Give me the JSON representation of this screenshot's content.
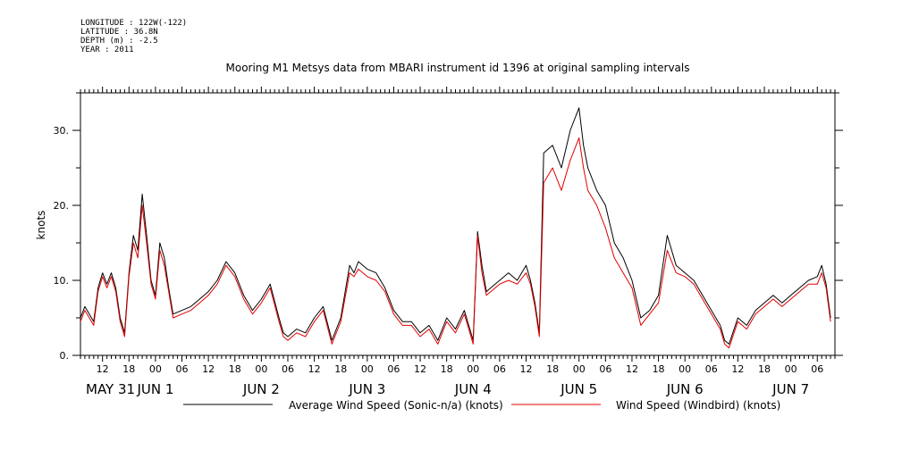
{
  "header": {
    "meta_lines": [
      "LONGITUDE : 122W(-122)",
      "LATITUDE : 36.8N",
      "DEPTH (m) : -2.5",
      "YEAR : 2011"
    ],
    "title": "Mooring M1 Metsys data from MBARI instrument id 1396 at original sampling intervals"
  },
  "chart_data": {
    "type": "line",
    "title": "Mooring M1 Metsys data from MBARI instrument id 1396 at original sampling intervals",
    "ylabel": "knots",
    "xlabel": "",
    "xlim": [
      "2011-05-31T07:00",
      "2011-06-07T10:00"
    ],
    "ylim": [
      0,
      35
    ],
    "y_ticks": [
      0,
      10,
      20,
      30
    ],
    "y_tick_labels": [
      "0.",
      "10.",
      "20.",
      "30."
    ],
    "hour_ticks": [
      {
        "t": "2011-05-31T12:00",
        "label": "12"
      },
      {
        "t": "2011-05-31T18:00",
        "label": "18"
      },
      {
        "t": "2011-06-01T00:00",
        "label": "00"
      },
      {
        "t": "2011-06-01T06:00",
        "label": "06"
      },
      {
        "t": "2011-06-01T12:00",
        "label": "12"
      },
      {
        "t": "2011-06-01T18:00",
        "label": "18"
      },
      {
        "t": "2011-06-02T00:00",
        "label": "00"
      },
      {
        "t": "2011-06-02T06:00",
        "label": "06"
      },
      {
        "t": "2011-06-02T12:00",
        "label": "12"
      },
      {
        "t": "2011-06-02T18:00",
        "label": "18"
      },
      {
        "t": "2011-06-03T00:00",
        "label": "00"
      },
      {
        "t": "2011-06-03T06:00",
        "label": "06"
      },
      {
        "t": "2011-06-03T12:00",
        "label": "12"
      },
      {
        "t": "2011-06-03T18:00",
        "label": "18"
      },
      {
        "t": "2011-06-04T00:00",
        "label": "00"
      },
      {
        "t": "2011-06-04T06:00",
        "label": "06"
      },
      {
        "t": "2011-06-04T12:00",
        "label": "12"
      },
      {
        "t": "2011-06-04T18:00",
        "label": "18"
      },
      {
        "t": "2011-06-05T00:00",
        "label": "00"
      },
      {
        "t": "2011-06-05T06:00",
        "label": "06"
      },
      {
        "t": "2011-06-05T12:00",
        "label": "12"
      },
      {
        "t": "2011-06-05T18:00",
        "label": "18"
      },
      {
        "t": "2011-06-06T00:00",
        "label": "00"
      },
      {
        "t": "2011-06-06T06:00",
        "label": "06"
      },
      {
        "t": "2011-06-06T12:00",
        "label": "12"
      },
      {
        "t": "2011-06-06T18:00",
        "label": "18"
      },
      {
        "t": "2011-06-07T00:00",
        "label": "00"
      },
      {
        "t": "2011-06-07T06:00",
        "label": "06"
      }
    ],
    "day_labels": [
      {
        "t": "2011-05-31T00:00",
        "label": "MAY 31"
      },
      {
        "t": "2011-06-01T00:00",
        "label": "JUN  1"
      },
      {
        "t": "2011-06-02T00:00",
        "label": "JUN  2"
      },
      {
        "t": "2011-06-03T00:00",
        "label": "JUN  3"
      },
      {
        "t": "2011-06-04T00:00",
        "label": "JUN  4"
      },
      {
        "t": "2011-06-05T00:00",
        "label": "JUN  5"
      },
      {
        "t": "2011-06-06T00:00",
        "label": "JUN  6"
      },
      {
        "t": "2011-06-07T00:00",
        "label": "JUN  7"
      }
    ],
    "grid": false,
    "legend_position": "bottom",
    "series": [
      {
        "name": "Average Wind Speed (Sonic-n/a) (knots)",
        "color": "#000000",
        "x": [
          "2011-05-31T07:00",
          "2011-05-31T08:00",
          "2011-05-31T09:00",
          "2011-05-31T10:00",
          "2011-05-31T11:00",
          "2011-05-31T12:00",
          "2011-05-31T13:00",
          "2011-05-31T14:00",
          "2011-05-31T15:00",
          "2011-05-31T16:00",
          "2011-05-31T17:00",
          "2011-05-31T18:00",
          "2011-05-31T19:00",
          "2011-05-31T20:00",
          "2011-05-31T21:00",
          "2011-05-31T22:00",
          "2011-05-31T23:00",
          "2011-06-01T00:00",
          "2011-06-01T01:00",
          "2011-06-01T02:00",
          "2011-06-01T03:00",
          "2011-06-01T04:00",
          "2011-06-01T06:00",
          "2011-06-01T08:00",
          "2011-06-01T10:00",
          "2011-06-01T12:00",
          "2011-06-01T14:00",
          "2011-06-01T16:00",
          "2011-06-01T18:00",
          "2011-06-01T20:00",
          "2011-06-01T22:00",
          "2011-06-02T00:00",
          "2011-06-02T02:00",
          "2011-06-02T04:00",
          "2011-06-02T05:00",
          "2011-06-02T06:00",
          "2011-06-02T08:00",
          "2011-06-02T10:00",
          "2011-06-02T12:00",
          "2011-06-02T14:00",
          "2011-06-02T16:00",
          "2011-06-02T18:00",
          "2011-06-02T20:00",
          "2011-06-02T21:00",
          "2011-06-02T22:00",
          "2011-06-03T00:00",
          "2011-06-03T02:00",
          "2011-06-03T04:00",
          "2011-06-03T06:00",
          "2011-06-03T08:00",
          "2011-06-03T10:00",
          "2011-06-03T12:00",
          "2011-06-03T14:00",
          "2011-06-03T16:00",
          "2011-06-03T18:00",
          "2011-06-03T20:00",
          "2011-06-03T22:00",
          "2011-06-04T00:00",
          "2011-06-04T01:00",
          "2011-06-04T02:00",
          "2011-06-04T03:00",
          "2011-06-04T04:00",
          "2011-06-04T06:00",
          "2011-06-04T08:00",
          "2011-06-04T10:00",
          "2011-06-04T12:00",
          "2011-06-04T13:00",
          "2011-06-04T14:00",
          "2011-06-04T15:00",
          "2011-06-04T16:00",
          "2011-06-04T18:00",
          "2011-06-04T20:00",
          "2011-06-04T22:00",
          "2011-06-05T00:00",
          "2011-06-05T01:00",
          "2011-06-05T02:00",
          "2011-06-05T04:00",
          "2011-06-05T06:00",
          "2011-06-05T08:00",
          "2011-06-05T10:00",
          "2011-06-05T12:00",
          "2011-06-05T14:00",
          "2011-06-05T16:00",
          "2011-06-05T18:00",
          "2011-06-05T20:00",
          "2011-06-05T22:00",
          "2011-06-06T00:00",
          "2011-06-06T02:00",
          "2011-06-06T04:00",
          "2011-06-06T06:00",
          "2011-06-06T08:00",
          "2011-06-06T09:00",
          "2011-06-06T10:00",
          "2011-06-06T12:00",
          "2011-06-06T14:00",
          "2011-06-06T16:00",
          "2011-06-06T18:00",
          "2011-06-06T20:00",
          "2011-06-06T22:00",
          "2011-06-07T00:00",
          "2011-06-07T02:00",
          "2011-06-07T04:00",
          "2011-06-07T06:00",
          "2011-06-07T07:00",
          "2011-06-07T08:00",
          "2011-06-07T09:00"
        ],
        "y": [
          5,
          6.5,
          5.5,
          4.5,
          9,
          11,
          9.5,
          11,
          9,
          5,
          3,
          11,
          16,
          14,
          21.5,
          16,
          10,
          8,
          15,
          13,
          9,
          5.5,
          6,
          6.5,
          7.5,
          8.5,
          10,
          12.5,
          11,
          8,
          6,
          7.5,
          9.5,
          5,
          3,
          2.5,
          3.5,
          3,
          5,
          6.5,
          2,
          5,
          12,
          11,
          12.5,
          11.5,
          11,
          9,
          6,
          4.5,
          4.5,
          3,
          4,
          2,
          5,
          3.5,
          6,
          2,
          16.5,
          12,
          8.5,
          9,
          10,
          11,
          10,
          12,
          10,
          7,
          3,
          27,
          28,
          25,
          30,
          33,
          28,
          25,
          22,
          20,
          15,
          13,
          10,
          5,
          6,
          8,
          16,
          12,
          11,
          10,
          8,
          6,
          4,
          2,
          1.5,
          5,
          4,
          6,
          7,
          8,
          7,
          8,
          9,
          10,
          10.5,
          12,
          9.5,
          5
        ]
      },
      {
        "name": "Wind Speed (Windbird) (knots)",
        "color": "#e00000",
        "x": [
          "2011-05-31T07:00",
          "2011-05-31T08:00",
          "2011-05-31T09:00",
          "2011-05-31T10:00",
          "2011-05-31T11:00",
          "2011-05-31T12:00",
          "2011-05-31T13:00",
          "2011-05-31T14:00",
          "2011-05-31T15:00",
          "2011-05-31T16:00",
          "2011-05-31T17:00",
          "2011-05-31T18:00",
          "2011-05-31T19:00",
          "2011-05-31T20:00",
          "2011-05-31T21:00",
          "2011-05-31T22:00",
          "2011-05-31T23:00",
          "2011-06-01T00:00",
          "2011-06-01T01:00",
          "2011-06-01T02:00",
          "2011-06-01T03:00",
          "2011-06-01T04:00",
          "2011-06-01T06:00",
          "2011-06-01T08:00",
          "2011-06-01T10:00",
          "2011-06-01T12:00",
          "2011-06-01T14:00",
          "2011-06-01T16:00",
          "2011-06-01T18:00",
          "2011-06-01T20:00",
          "2011-06-01T22:00",
          "2011-06-02T00:00",
          "2011-06-02T02:00",
          "2011-06-02T04:00",
          "2011-06-02T05:00",
          "2011-06-02T06:00",
          "2011-06-02T08:00",
          "2011-06-02T10:00",
          "2011-06-02T12:00",
          "2011-06-02T14:00",
          "2011-06-02T16:00",
          "2011-06-02T18:00",
          "2011-06-02T20:00",
          "2011-06-02T21:00",
          "2011-06-02T22:00",
          "2011-06-03T00:00",
          "2011-06-03T02:00",
          "2011-06-03T04:00",
          "2011-06-03T06:00",
          "2011-06-03T08:00",
          "2011-06-03T10:00",
          "2011-06-03T12:00",
          "2011-06-03T14:00",
          "2011-06-03T16:00",
          "2011-06-03T18:00",
          "2011-06-03T20:00",
          "2011-06-03T22:00",
          "2011-06-04T00:00",
          "2011-06-04T01:00",
          "2011-06-04T02:00",
          "2011-06-04T03:00",
          "2011-06-04T04:00",
          "2011-06-04T06:00",
          "2011-06-04T08:00",
          "2011-06-04T10:00",
          "2011-06-04T12:00",
          "2011-06-04T13:00",
          "2011-06-04T14:00",
          "2011-06-04T15:00",
          "2011-06-04T16:00",
          "2011-06-04T18:00",
          "2011-06-04T20:00",
          "2011-06-04T22:00",
          "2011-06-05T00:00",
          "2011-06-05T01:00",
          "2011-06-05T02:00",
          "2011-06-05T04:00",
          "2011-06-05T06:00",
          "2011-06-05T08:00",
          "2011-06-05T10:00",
          "2011-06-05T12:00",
          "2011-06-05T14:00",
          "2011-06-05T16:00",
          "2011-06-05T18:00",
          "2011-06-05T20:00",
          "2011-06-05T22:00",
          "2011-06-06T00:00",
          "2011-06-06T02:00",
          "2011-06-06T04:00",
          "2011-06-06T06:00",
          "2011-06-06T08:00",
          "2011-06-06T09:00",
          "2011-06-06T10:00",
          "2011-06-06T12:00",
          "2011-06-06T14:00",
          "2011-06-06T16:00",
          "2011-06-06T18:00",
          "2011-06-06T20:00",
          "2011-06-06T22:00",
          "2011-06-07T00:00",
          "2011-06-07T02:00",
          "2011-06-07T04:00",
          "2011-06-07T06:00",
          "2011-06-07T07:00",
          "2011-06-07T08:00",
          "2011-06-07T09:00"
        ],
        "y": [
          4.5,
          6,
          5,
          4,
          8.5,
          10.5,
          9,
          10.5,
          8.5,
          4.5,
          2.5,
          10.5,
          15,
          13,
          20,
          15,
          9.5,
          7.5,
          14,
          12,
          8.5,
          5,
          5.5,
          6,
          7,
          8,
          9.5,
          12,
          10.5,
          7.5,
          5.5,
          7,
          9,
          4.5,
          2.5,
          2,
          3,
          2.5,
          4.5,
          6,
          1.5,
          4.5,
          11,
          10.5,
          11.5,
          10.5,
          10,
          8.5,
          5.5,
          4,
          4,
          2.5,
          3.5,
          1.5,
          4.5,
          3,
          5.5,
          1.5,
          16,
          11,
          8,
          8.5,
          9.5,
          10,
          9.5,
          11,
          9.5,
          6.5,
          2.5,
          23,
          25,
          22,
          26,
          29,
          25,
          22,
          20,
          17,
          13,
          11,
          9,
          4,
          5.5,
          7,
          14,
          11,
          10.5,
          9.5,
          7.5,
          5.5,
          3.5,
          1.5,
          1,
          4.5,
          3.5,
          5.5,
          6.5,
          7.5,
          6.5,
          7.5,
          8.5,
          9.5,
          9.5,
          11,
          9,
          4.5
        ]
      }
    ]
  }
}
